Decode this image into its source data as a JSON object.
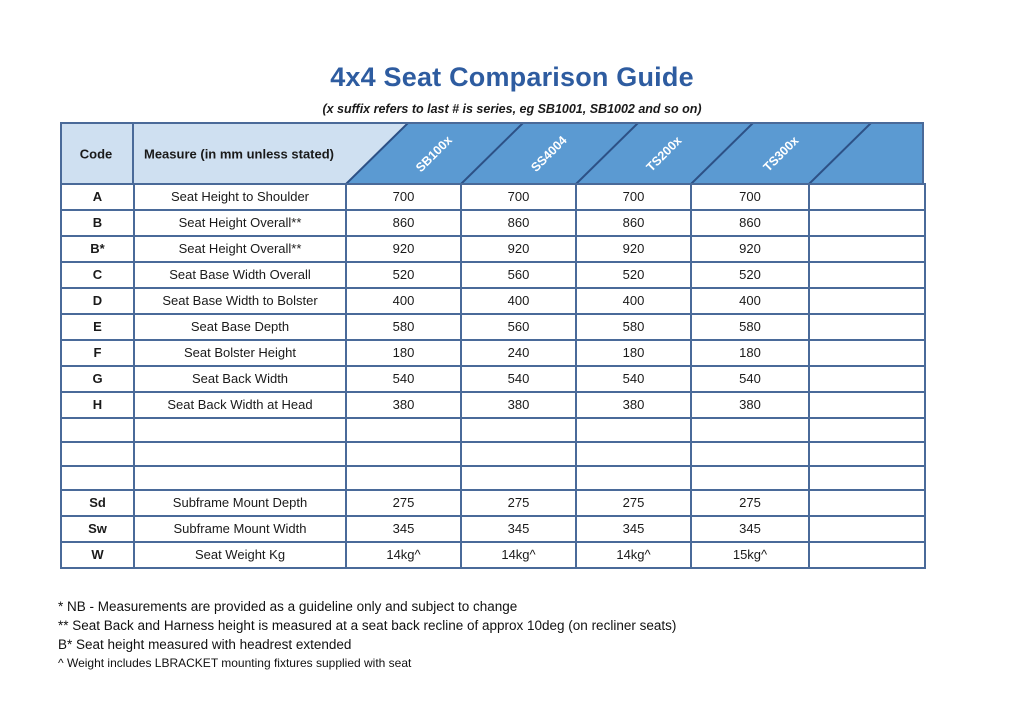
{
  "title": "4x4 Seat Comparison Guide",
  "subtitle": "(x suffix refers to last # is series, eg SB1001, SB1002 and so on)",
  "table": {
    "code_header": "Code",
    "measure_header": "Measure (in mm unless stated)",
    "series": [
      "SB100x",
      "SS4004",
      "TS200x",
      "TS300x",
      ""
    ],
    "rows": [
      {
        "code": "A",
        "measure": "Seat Height to Shoulder",
        "values": [
          "700",
          "700",
          "700",
          "700",
          ""
        ]
      },
      {
        "code": "B",
        "measure": "Seat Height Overall**",
        "values": [
          "860",
          "860",
          "860",
          "860",
          ""
        ]
      },
      {
        "code": "B*",
        "measure": "Seat Height Overall**",
        "values": [
          "920",
          "920",
          "920",
          "920",
          ""
        ]
      },
      {
        "code": "C",
        "measure": "Seat Base Width Overall",
        "values": [
          "520",
          "560",
          "520",
          "520",
          ""
        ]
      },
      {
        "code": "D",
        "measure": "Seat Base Width to Bolster",
        "values": [
          "400",
          "400",
          "400",
          "400",
          ""
        ]
      },
      {
        "code": "E",
        "measure": "Seat Base Depth",
        "values": [
          "580",
          "560",
          "580",
          "580",
          ""
        ]
      },
      {
        "code": "F",
        "measure": "Seat Bolster Height",
        "values": [
          "180",
          "240",
          "180",
          "180",
          ""
        ]
      },
      {
        "code": "G",
        "measure": "Seat Back Width",
        "values": [
          "540",
          "540",
          "540",
          "540",
          ""
        ]
      },
      {
        "code": "H",
        "measure": "Seat Back Width at Head",
        "values": [
          "380",
          "380",
          "380",
          "380",
          ""
        ]
      },
      {
        "code": "",
        "measure": "",
        "values": [
          "",
          "",
          "",
          "",
          ""
        ]
      },
      {
        "code": "",
        "measure": "",
        "values": [
          "",
          "",
          "",
          "",
          ""
        ]
      },
      {
        "code": "",
        "measure": "",
        "values": [
          "",
          "",
          "",
          "",
          ""
        ]
      },
      {
        "code": "Sd",
        "measure": "Subframe Mount Depth",
        "values": [
          "275",
          "275",
          "275",
          "275",
          ""
        ]
      },
      {
        "code": "Sw",
        "measure": "Subframe Mount Width",
        "values": [
          "345",
          "345",
          "345",
          "345",
          ""
        ]
      },
      {
        "code": "W",
        "measure": "Seat Weight Kg",
        "values": [
          "14kg^",
          "14kg^",
          "14kg^",
          "15kg^",
          ""
        ]
      }
    ]
  },
  "notes": [
    "* NB - Measurements are provided as a guideline only and subject to change",
    "** Seat Back and Harness height is measured at a seat back recline of approx 10deg (on recliner seats)",
    "B* Seat height measured with headrest extended",
    "^ Weight includes LBRACKET mounting fixtures supplied with seat"
  ],
  "colors": {
    "title_blue": "#2e5ca0",
    "header_light_blue": "#cfe0f1",
    "header_blue": "#5b9ad2",
    "border_blue": "#4a6a99",
    "diagonal_line": "#2d5186",
    "text": "#1a1a1a"
  }
}
